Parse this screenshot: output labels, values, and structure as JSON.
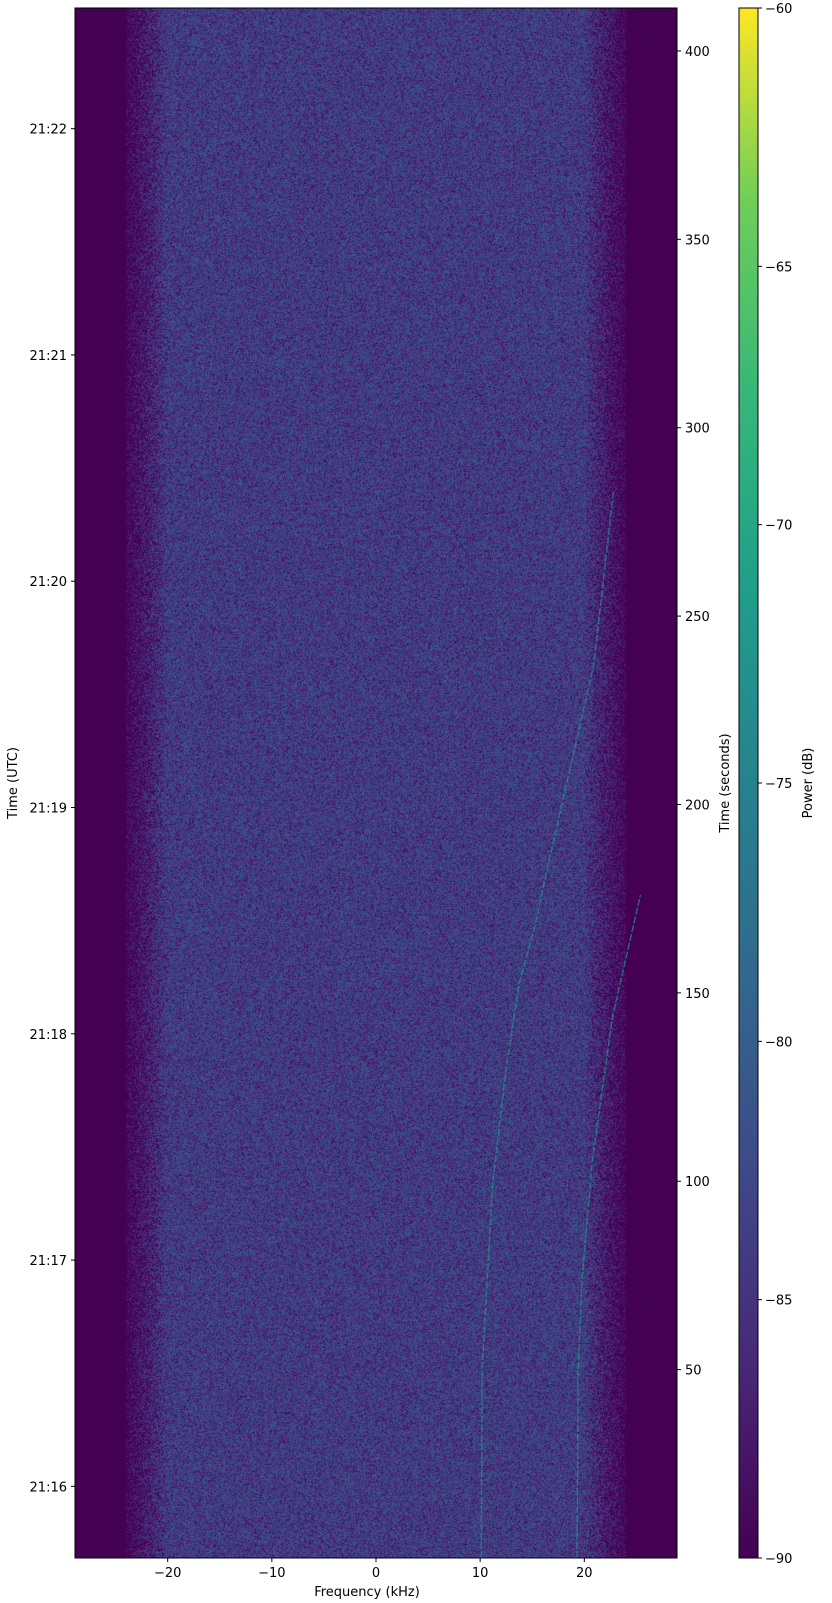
{
  "chart_data": {
    "type": "heatmap",
    "title": "",
    "xlabel": "Frequency (kHz)",
    "ylabel_left": "Time (UTC)",
    "ylabel_right": "Time (seconds)",
    "colorbar_label": "Power (dB)",
    "colormap": "viridis",
    "xlim": [
      -28.9,
      28.9
    ],
    "ylim_seconds": [
      0,
      411.4
    ],
    "ylim_utc": [
      "21:15:41",
      "21:22:32"
    ],
    "clim": [
      -90,
      -60
    ],
    "x_ticks": [
      -20,
      -10,
      0,
      10,
      20
    ],
    "x_tick_labels": [
      "−20",
      "−10",
      "0",
      "10",
      "20"
    ],
    "y_right_ticks": [
      50,
      100,
      150,
      200,
      250,
      300,
      350,
      400
    ],
    "y_right_tick_labels": [
      "50",
      "100",
      "150",
      "200",
      "250",
      "300",
      "350",
      "400"
    ],
    "y_left_ticks": [
      "21:16",
      "21:17",
      "21:18",
      "21:19",
      "21:20",
      "21:21",
      "21:22"
    ],
    "colorbar_ticks": [
      -60,
      -65,
      -70,
      -75,
      -80,
      -85,
      -90
    ],
    "colorbar_tick_labels": [
      "−60",
      "−65",
      "−70",
      "−75",
      "−80",
      "−85",
      "−90"
    ],
    "noise_band_khz": [
      -23,
      23
    ],
    "noise_floor_db": [
      -90,
      -80
    ],
    "grid": false,
    "signal_traces": [
      {
        "time_s": [
          0,
          50,
          99.5,
          130,
          152.6,
          167,
          185,
          237,
          283
        ],
        "freq_khz": [
          10.1,
          10.2,
          11.2,
          12.5,
          13.75,
          15.2,
          16.6,
          20.9,
          22.8
        ]
      },
      {
        "time_s": [
          0,
          50,
          74.5,
          106,
          143.5,
          176
        ],
        "freq_khz": [
          19.3,
          19.4,
          19.8,
          20.8,
          22.7,
          25.4
        ]
      }
    ],
    "colors": {
      "background": "#440154",
      "signal": "#21908d"
    }
  }
}
